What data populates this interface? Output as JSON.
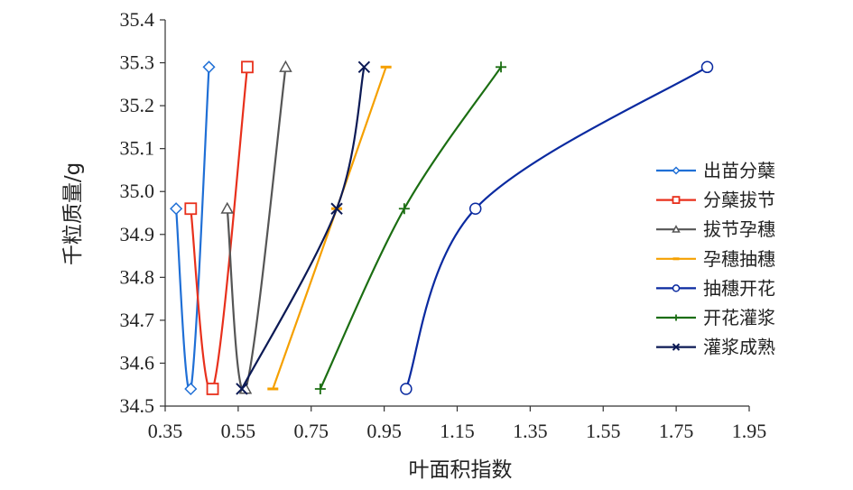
{
  "chart_data": {
    "type": "line",
    "title": "",
    "xlabel": "叶面积指数",
    "ylabel": "千粒质量/g",
    "xlim": [
      0.35,
      1.95
    ],
    "ylim": [
      34.5,
      35.4
    ],
    "xticks": [
      "0.35",
      "0.55",
      "0.75",
      "0.95",
      "1.15",
      "1.35",
      "1.55",
      "1.75",
      "1.95"
    ],
    "yticks": [
      "34.5",
      "34.6",
      "34.7",
      "34.8",
      "34.9",
      "35.0",
      "35.1",
      "35.2",
      "35.3",
      "35.4"
    ],
    "grid": false,
    "legend_position": "right",
    "series": [
      {
        "name": "出苗分蘖",
        "color": "#1f6fd6",
        "marker": "diamond",
        "points": [
          [
            0.38,
            34.96
          ],
          [
            0.42,
            34.54
          ],
          [
            0.47,
            35.29
          ]
        ]
      },
      {
        "name": "分蘖拔节",
        "color": "#e8301c",
        "marker": "square",
        "points": [
          [
            0.42,
            34.96
          ],
          [
            0.48,
            34.54
          ],
          [
            0.575,
            35.29
          ]
        ]
      },
      {
        "name": "拔节孕穗",
        "color": "#555555",
        "marker": "triangle",
        "points": [
          [
            0.52,
            34.96
          ],
          [
            0.57,
            34.54
          ],
          [
            0.68,
            35.29
          ]
        ]
      },
      {
        "name": "孕穗抽穗",
        "color": "#f5a000",
        "marker": "dash",
        "points": [
          [
            0.645,
            34.54
          ],
          [
            0.82,
            34.96
          ],
          [
            0.955,
            35.29
          ]
        ]
      },
      {
        "name": "抽穗开花",
        "color": "#0a2aa0",
        "marker": "circle",
        "points": [
          [
            1.01,
            34.54
          ],
          [
            1.2,
            34.96
          ],
          [
            1.835,
            35.29
          ]
        ]
      },
      {
        "name": "开花灌浆",
        "color": "#1b6e12",
        "marker": "plus",
        "points": [
          [
            0.775,
            34.54
          ],
          [
            1.005,
            34.96
          ],
          [
            1.27,
            35.29
          ]
        ]
      },
      {
        "name": "灌浆成熟",
        "color": "#0c1a55",
        "marker": "x",
        "points": [
          [
            0.56,
            34.54
          ],
          [
            0.82,
            34.96
          ],
          [
            0.895,
            35.29
          ]
        ]
      }
    ]
  }
}
